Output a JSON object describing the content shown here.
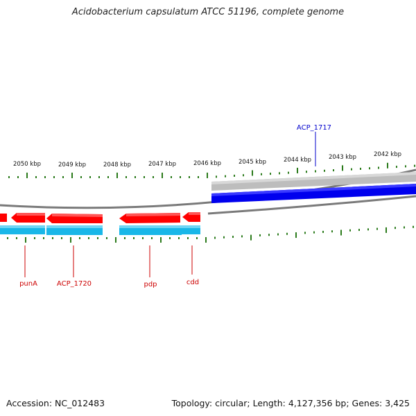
{
  "title": "Acidobacterium capsulatum ATCC 51196, complete genome",
  "footer": {
    "accession": "Accession: NC_012483",
    "summary": "Topology: circular; Length: 4,127,356 bp; Genes: 3,425"
  },
  "colors": {
    "forward_gene": "#ff0000",
    "cds_track": "#19b7e8",
    "highlight_gene": "#0000ee",
    "grey_gene": "#bdbdbd",
    "backbone": "#777777",
    "tick": "#2a7a1a",
    "label_red": "#cc0000",
    "label_blue": "#0000cc"
  },
  "ticks": [
    {
      "label": "2050 kbp"
    },
    {
      "label": "2049 kbp"
    },
    {
      "label": "2048 kbp"
    },
    {
      "label": "2047 kbp"
    },
    {
      "label": "2046 kbp"
    },
    {
      "label": "2045 kbp"
    },
    {
      "label": "2044 kbp"
    },
    {
      "label": "2043 kbp"
    },
    {
      "label": "2042 kbp"
    }
  ],
  "gene_labels": [
    {
      "name": "punA",
      "color": "red"
    },
    {
      "name": "ACP_1720",
      "color": "red"
    },
    {
      "name": "pdp",
      "color": "red"
    },
    {
      "name": "cdd",
      "color": "red"
    },
    {
      "name": "ACP_1717",
      "color": "blue"
    }
  ]
}
